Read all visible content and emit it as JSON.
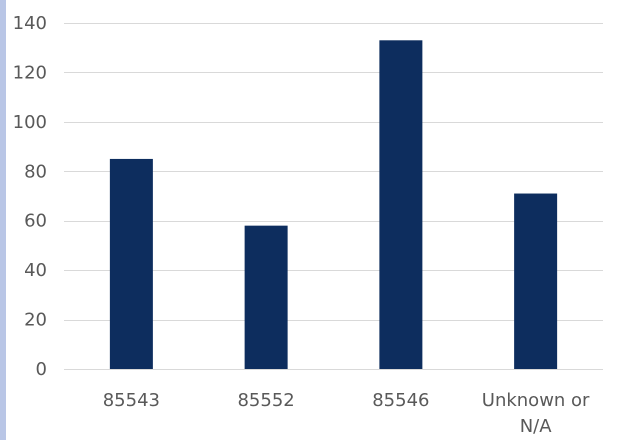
{
  "chart_data": {
    "type": "bar",
    "categories": [
      "85543",
      "85552",
      "85546",
      [
        "Unknown or",
        "N/A"
      ]
    ],
    "values": [
      85,
      58,
      133,
      71
    ],
    "title": "",
    "xlabel": "",
    "ylabel": "",
    "ylim": [
      0,
      140
    ],
    "yticks": [
      0,
      20,
      40,
      60,
      80,
      100,
      120,
      140
    ],
    "grid": true,
    "legend": "none",
    "colors": {
      "bar": "#0d2d5e",
      "grid": "#d9d9d9",
      "text": "#595959",
      "strip": "#b9c6e6"
    }
  }
}
